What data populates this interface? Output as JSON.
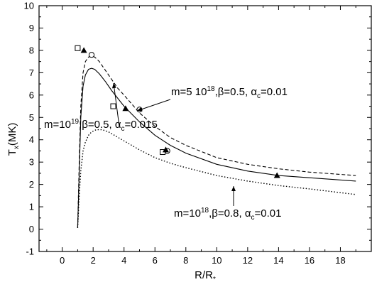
{
  "chart_data": {
    "type": "line",
    "xlabel": "R/R*",
    "ylabel": "Tx(MK)",
    "xlim": [
      -1.5,
      20
    ],
    "ylim": [
      -1,
      10
    ],
    "xticks": [
      "0",
      "2",
      "4",
      "6",
      "8",
      "10",
      "12",
      "14",
      "16",
      "18"
    ],
    "yticks": [
      "-1",
      "0",
      "1",
      "2",
      "3",
      "4",
      "5",
      "6",
      "7",
      "8",
      "9",
      "10"
    ],
    "grid": false,
    "series": [
      {
        "style": "dashed",
        "x": [
          1.0,
          1.1,
          1.2,
          1.35,
          1.5,
          1.7,
          1.9,
          2.1,
          2.4,
          2.8,
          3.2,
          3.6,
          4.0,
          5.0,
          6.0,
          7.0,
          8.0,
          10.0,
          12.0,
          14.0,
          16.0,
          19.0
        ],
        "y": [
          0.1,
          3.0,
          5.5,
          7.0,
          7.5,
          7.7,
          7.75,
          7.7,
          7.5,
          7.1,
          6.7,
          6.3,
          6.0,
          5.2,
          4.6,
          4.1,
          3.75,
          3.2,
          2.9,
          2.7,
          2.55,
          2.4
        ]
      },
      {
        "style": "solid",
        "x": [
          1.0,
          1.1,
          1.2,
          1.35,
          1.5,
          1.7,
          1.9,
          2.1,
          2.4,
          2.8,
          3.2,
          3.6,
          4.0,
          5.0,
          6.0,
          7.0,
          8.0,
          10.0,
          12.0,
          14.0,
          16.0,
          19.0
        ],
        "y": [
          0.05,
          2.5,
          5.0,
          6.4,
          6.9,
          7.15,
          7.2,
          7.15,
          6.95,
          6.6,
          6.2,
          5.85,
          5.5,
          4.8,
          4.2,
          3.75,
          3.4,
          2.9,
          2.6,
          2.4,
          2.3,
          2.15
        ]
      },
      {
        "style": "dotted",
        "x": [
          1.0,
          1.1,
          1.2,
          1.35,
          1.5,
          1.7,
          1.9,
          2.2,
          2.6,
          3.0,
          3.5,
          4.0,
          5.0,
          6.0,
          7.0,
          8.0,
          10.0,
          12.0,
          14.0,
          16.0,
          19.0
        ],
        "y": [
          0.05,
          1.5,
          2.6,
          3.5,
          3.9,
          4.2,
          4.35,
          4.45,
          4.45,
          4.35,
          4.15,
          3.95,
          3.55,
          3.2,
          2.95,
          2.75,
          2.4,
          2.15,
          1.95,
          1.8,
          1.55
        ]
      }
    ],
    "markers": [
      {
        "shape": "square",
        "points": [
          [
            1.0,
            8.1
          ],
          [
            3.3,
            5.5
          ],
          [
            6.5,
            3.45
          ]
        ]
      },
      {
        "shape": "circle",
        "points": [
          [
            1.9,
            7.8
          ],
          [
            5.0,
            5.35
          ],
          [
            6.8,
            3.5
          ]
        ]
      },
      {
        "shape": "triangle",
        "points": [
          [
            1.4,
            8.0
          ],
          [
            4.1,
            5.4
          ],
          [
            6.7,
            3.55
          ],
          [
            13.9,
            2.4
          ]
        ]
      }
    ],
    "annotations": [
      {
        "id": "ann1",
        "parts": [
          "m=5 10",
          "18",
          ",β=0.5, α",
          "c",
          "=0.01"
        ]
      },
      {
        "id": "ann2",
        "parts": [
          "m=10",
          "19",
          ",β=0.5, α",
          "c",
          "=0.015"
        ]
      },
      {
        "id": "ann3",
        "parts": [
          "m=10",
          "18",
          ",β=0.8, α",
          "c",
          "=0.01"
        ]
      }
    ]
  }
}
